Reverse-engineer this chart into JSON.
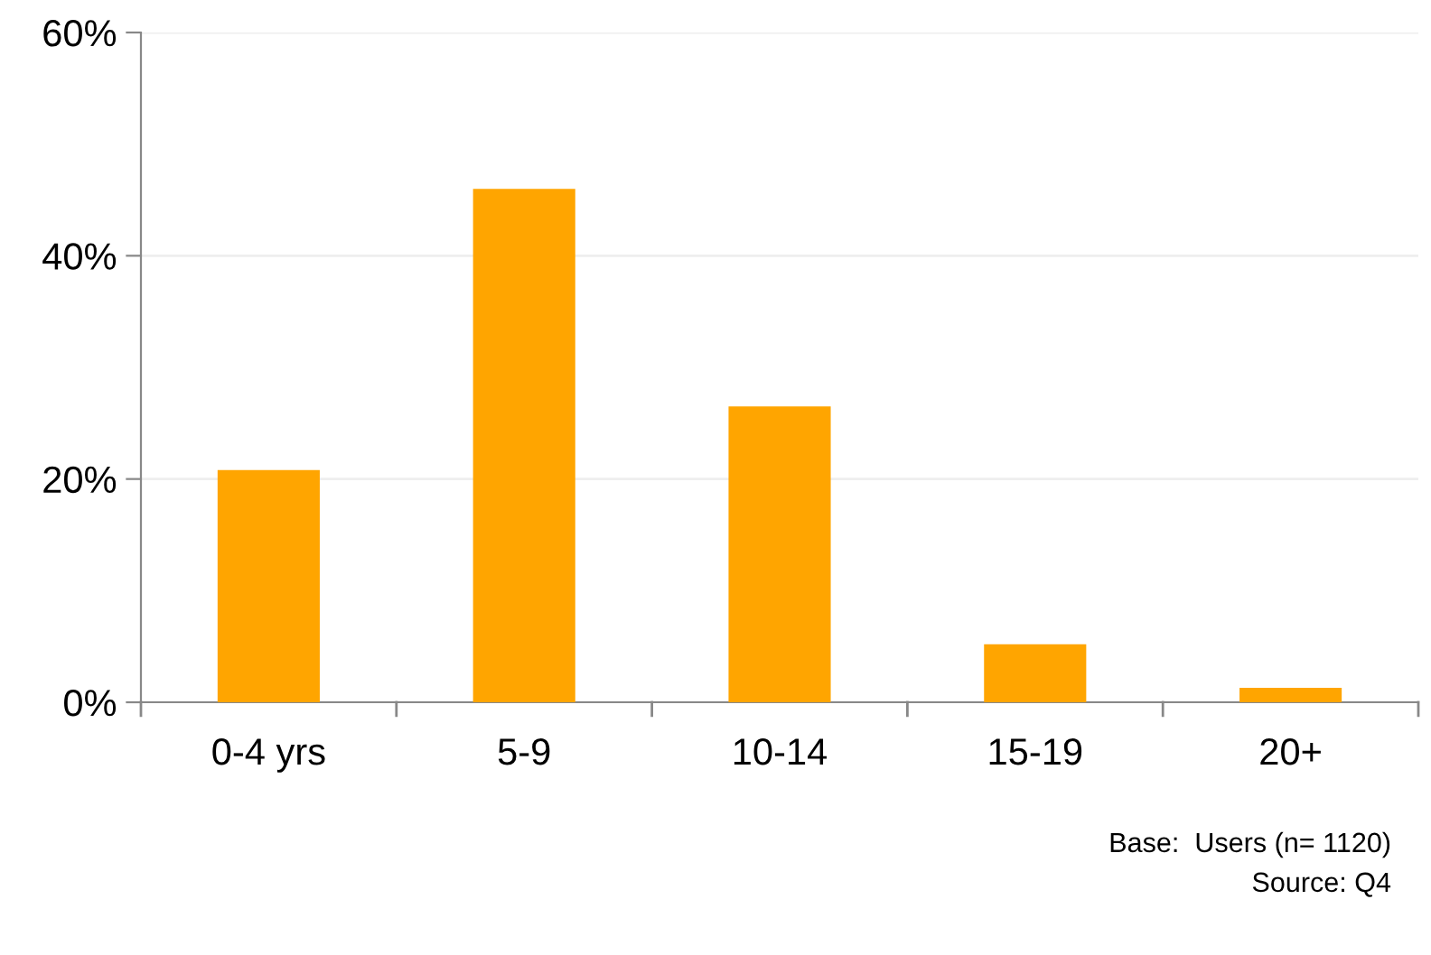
{
  "chart_data": {
    "type": "bar",
    "categories": [
      "0-4 yrs",
      "5-9",
      "10-14",
      "15-19",
      "20+"
    ],
    "values": [
      20.8,
      46.0,
      26.5,
      5.2,
      1.3
    ],
    "color": "#ffa500",
    "ylim": [
      0,
      60
    ],
    "yticks": [
      {
        "value": 0,
        "label": "0%"
      },
      {
        "value": 20,
        "label": "20%"
      },
      {
        "value": 40,
        "label": "40%"
      },
      {
        "value": 60,
        "label": "60%"
      }
    ],
    "grid": "y",
    "annotations": [
      "Base:  Users (n= 1120)",
      "Source: Q4"
    ]
  }
}
